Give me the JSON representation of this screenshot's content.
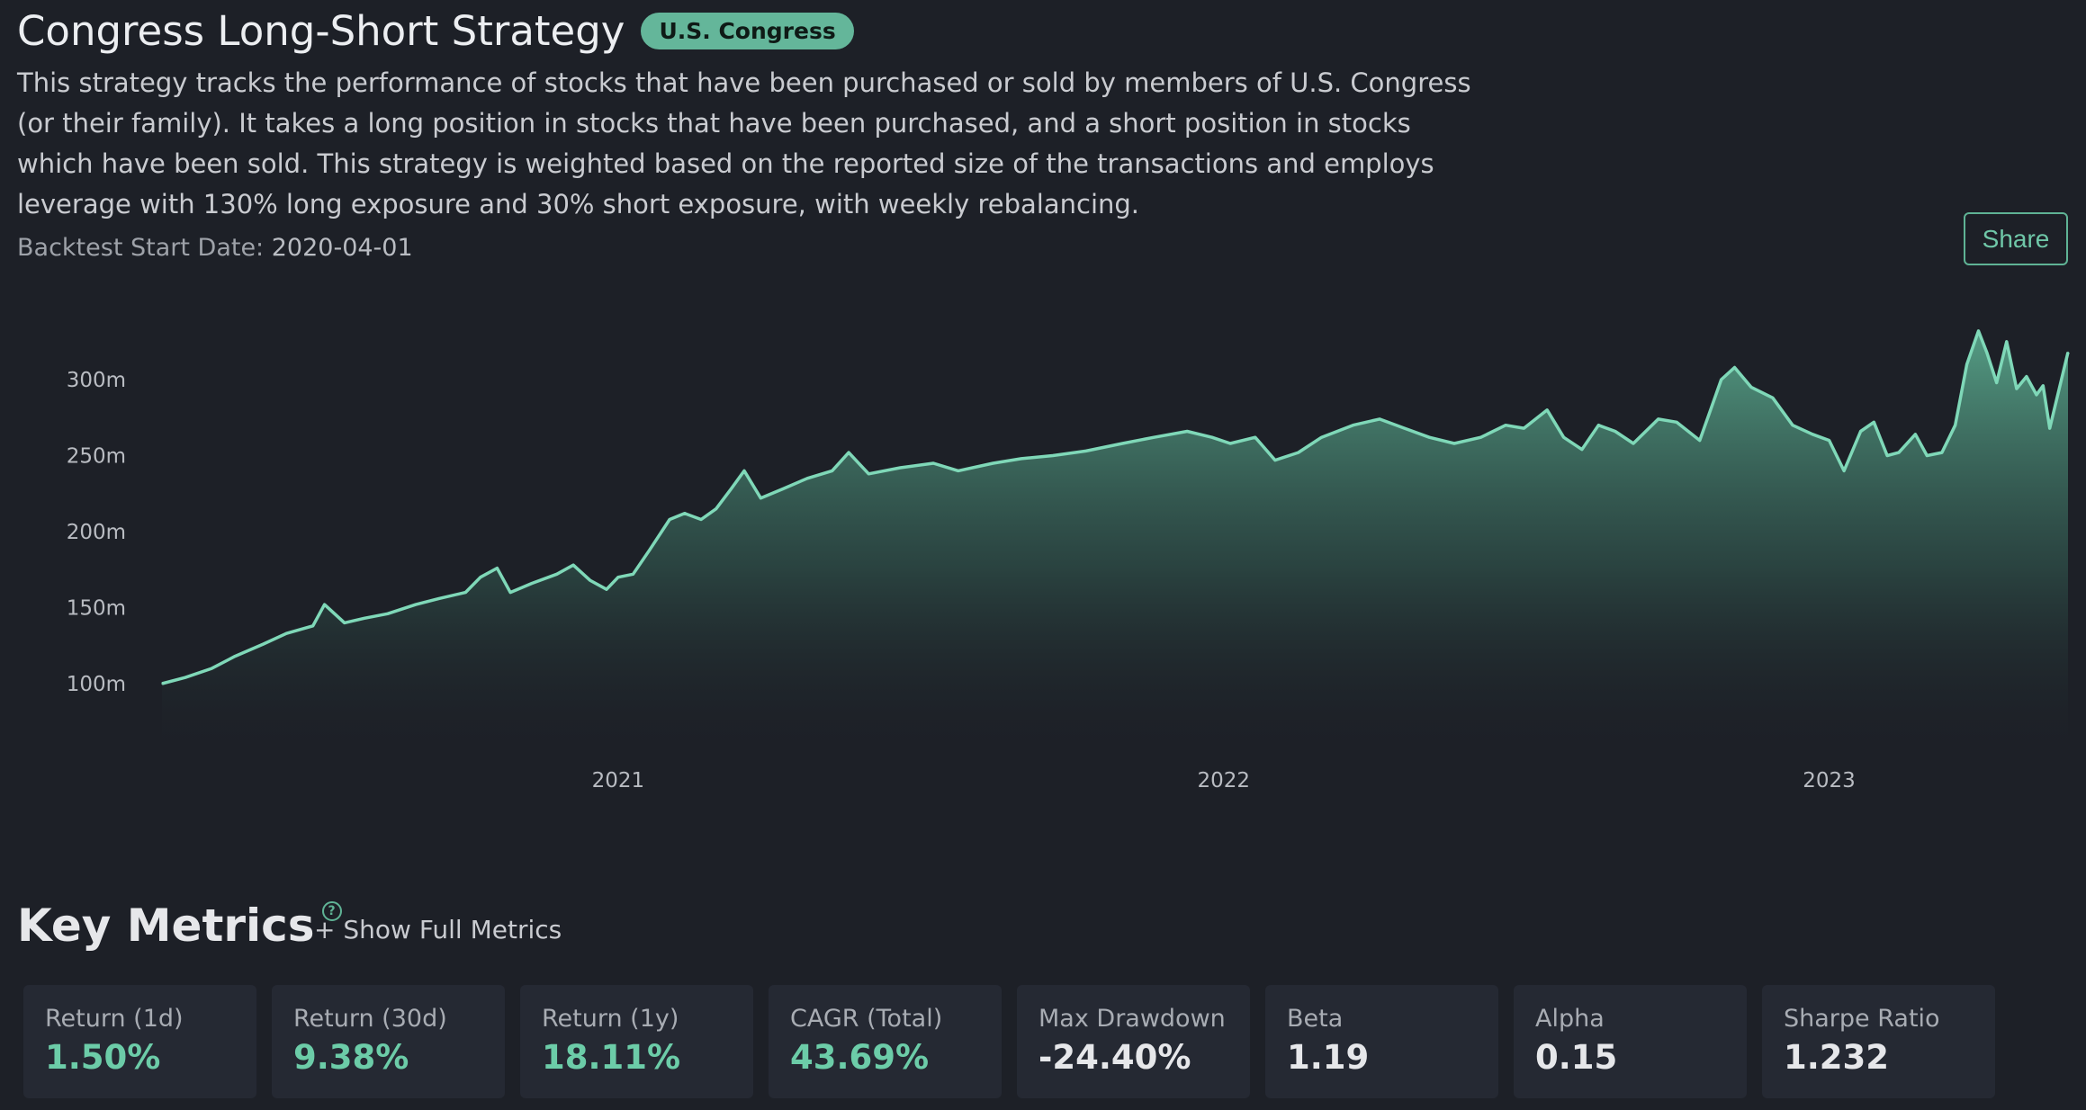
{
  "header": {
    "title": "Congress Long-Short Strategy",
    "badge": "U.S. Congress",
    "description": "This strategy tracks the performance of stocks that have been purchased or sold by members of U.S. Congress (or their family). It takes a long position in stocks that have been purchased, and a short position in stocks which have been sold. This strategy is weighted based on the reported size of the transactions and employs leverage with 130% long exposure and 30% short exposure, with weekly rebalancing.",
    "start_label": "Backtest Start Date:",
    "start_value": "2020-04-01",
    "share_label": "Share"
  },
  "colors": {
    "accent": "#64b69a",
    "line": "#7fd8b8",
    "background": "#1d2027",
    "card": "#252933"
  },
  "chart_data": {
    "type": "area",
    "x_unit": "date",
    "y_unit": "millions",
    "x_ticks": [
      {
        "label": "2021",
        "date": "2021-01-01"
      },
      {
        "label": "2022",
        "date": "2022-01-01"
      },
      {
        "label": "2023",
        "date": "2023-01-01"
      }
    ],
    "y_ticks": [
      {
        "label": "100m",
        "value": 100
      },
      {
        "label": "150m",
        "value": 150
      },
      {
        "label": "200m",
        "value": 200
      },
      {
        "label": "250m",
        "value": 250
      },
      {
        "label": "300m",
        "value": 300
      }
    ],
    "xlim": [
      "2020-04-01",
      "2023-05-25"
    ],
    "ylim": [
      50,
      335
    ],
    "grid": false,
    "series": [
      {
        "points": [
          [
            "2020-04-01",
            100
          ],
          [
            "2020-04-15",
            104
          ],
          [
            "2020-05-01",
            110
          ],
          [
            "2020-05-15",
            118
          ],
          [
            "2020-06-01",
            126
          ],
          [
            "2020-06-15",
            133
          ],
          [
            "2020-07-01",
            138
          ],
          [
            "2020-07-08",
            152
          ],
          [
            "2020-07-20",
            140
          ],
          [
            "2020-08-01",
            143
          ],
          [
            "2020-08-15",
            146
          ],
          [
            "2020-09-01",
            152
          ],
          [
            "2020-09-15",
            156
          ],
          [
            "2020-10-01",
            160
          ],
          [
            "2020-10-10",
            170
          ],
          [
            "2020-10-20",
            176
          ],
          [
            "2020-10-28",
            160
          ],
          [
            "2020-11-10",
            166
          ],
          [
            "2020-11-25",
            172
          ],
          [
            "2020-12-05",
            178
          ],
          [
            "2020-12-15",
            168
          ],
          [
            "2020-12-25",
            162
          ],
          [
            "2021-01-01",
            170
          ],
          [
            "2021-01-10",
            172
          ],
          [
            "2021-01-20",
            188
          ],
          [
            "2021-02-01",
            208
          ],
          [
            "2021-02-10",
            212
          ],
          [
            "2021-02-20",
            208
          ],
          [
            "2021-03-01",
            215
          ],
          [
            "2021-03-10",
            228
          ],
          [
            "2021-03-18",
            240
          ],
          [
            "2021-03-28",
            222
          ],
          [
            "2021-04-10",
            228
          ],
          [
            "2021-04-25",
            235
          ],
          [
            "2021-05-10",
            240
          ],
          [
            "2021-05-20",
            252
          ],
          [
            "2021-06-01",
            238
          ],
          [
            "2021-06-20",
            242
          ],
          [
            "2021-07-10",
            245
          ],
          [
            "2021-07-25",
            240
          ],
          [
            "2021-08-15",
            245
          ],
          [
            "2021-09-01",
            248
          ],
          [
            "2021-09-20",
            250
          ],
          [
            "2021-10-10",
            253
          ],
          [
            "2021-11-01",
            258
          ],
          [
            "2021-11-20",
            262
          ],
          [
            "2021-12-10",
            266
          ],
          [
            "2021-12-25",
            262
          ],
          [
            "2022-01-05",
            258
          ],
          [
            "2022-01-20",
            262
          ],
          [
            "2022-02-01",
            247
          ],
          [
            "2022-02-15",
            252
          ],
          [
            "2022-03-01",
            262
          ],
          [
            "2022-03-20",
            270
          ],
          [
            "2022-04-05",
            274
          ],
          [
            "2022-04-20",
            268
          ],
          [
            "2022-05-05",
            262
          ],
          [
            "2022-05-20",
            258
          ],
          [
            "2022-06-05",
            262
          ],
          [
            "2022-06-20",
            270
          ],
          [
            "2022-07-01",
            268
          ],
          [
            "2022-07-15",
            280
          ],
          [
            "2022-07-25",
            262
          ],
          [
            "2022-08-05",
            254
          ],
          [
            "2022-08-15",
            270
          ],
          [
            "2022-08-25",
            266
          ],
          [
            "2022-09-05",
            258
          ],
          [
            "2022-09-20",
            274
          ],
          [
            "2022-10-01",
            272
          ],
          [
            "2022-10-15",
            260
          ],
          [
            "2022-10-28",
            300
          ],
          [
            "2022-11-05",
            308
          ],
          [
            "2022-11-15",
            295
          ],
          [
            "2022-11-28",
            288
          ],
          [
            "2022-12-10",
            270
          ],
          [
            "2022-12-22",
            264
          ],
          [
            "2023-01-01",
            260
          ],
          [
            "2023-01-10",
            240
          ],
          [
            "2023-01-20",
            266
          ],
          [
            "2023-01-28",
            272
          ],
          [
            "2023-02-05",
            250
          ],
          [
            "2023-02-12",
            252
          ],
          [
            "2023-02-22",
            264
          ],
          [
            "2023-03-01",
            250
          ],
          [
            "2023-03-10",
            252
          ],
          [
            "2023-03-18",
            270
          ],
          [
            "2023-03-25",
            310
          ],
          [
            "2023-04-01",
            332
          ],
          [
            "2023-04-06",
            318
          ],
          [
            "2023-04-12",
            298
          ],
          [
            "2023-04-18",
            325
          ],
          [
            "2023-04-24",
            294
          ],
          [
            "2023-04-30",
            302
          ],
          [
            "2023-05-06",
            290
          ],
          [
            "2023-05-10",
            296
          ],
          [
            "2023-05-14",
            268
          ],
          [
            "2023-05-25",
            318
          ]
        ]
      }
    ]
  },
  "metrics": {
    "title": "Key Metrics",
    "help_icon": "question-circle-icon",
    "show_full": "+ Show Full Metrics",
    "cards": [
      {
        "label": "Return (1d)",
        "value": "1.50%",
        "tone": "pos"
      },
      {
        "label": "Return (30d)",
        "value": "9.38%",
        "tone": "pos"
      },
      {
        "label": "Return (1y)",
        "value": "18.11%",
        "tone": "pos"
      },
      {
        "label": "CAGR (Total)",
        "value": "43.69%",
        "tone": "pos"
      },
      {
        "label": "Max Drawdown",
        "value": "-24.40%",
        "tone": "neu"
      },
      {
        "label": "Beta",
        "value": "1.19",
        "tone": "neu"
      },
      {
        "label": "Alpha",
        "value": "0.15",
        "tone": "neu"
      },
      {
        "label": "Sharpe Ratio",
        "value": "1.232",
        "tone": "neu"
      }
    ]
  }
}
